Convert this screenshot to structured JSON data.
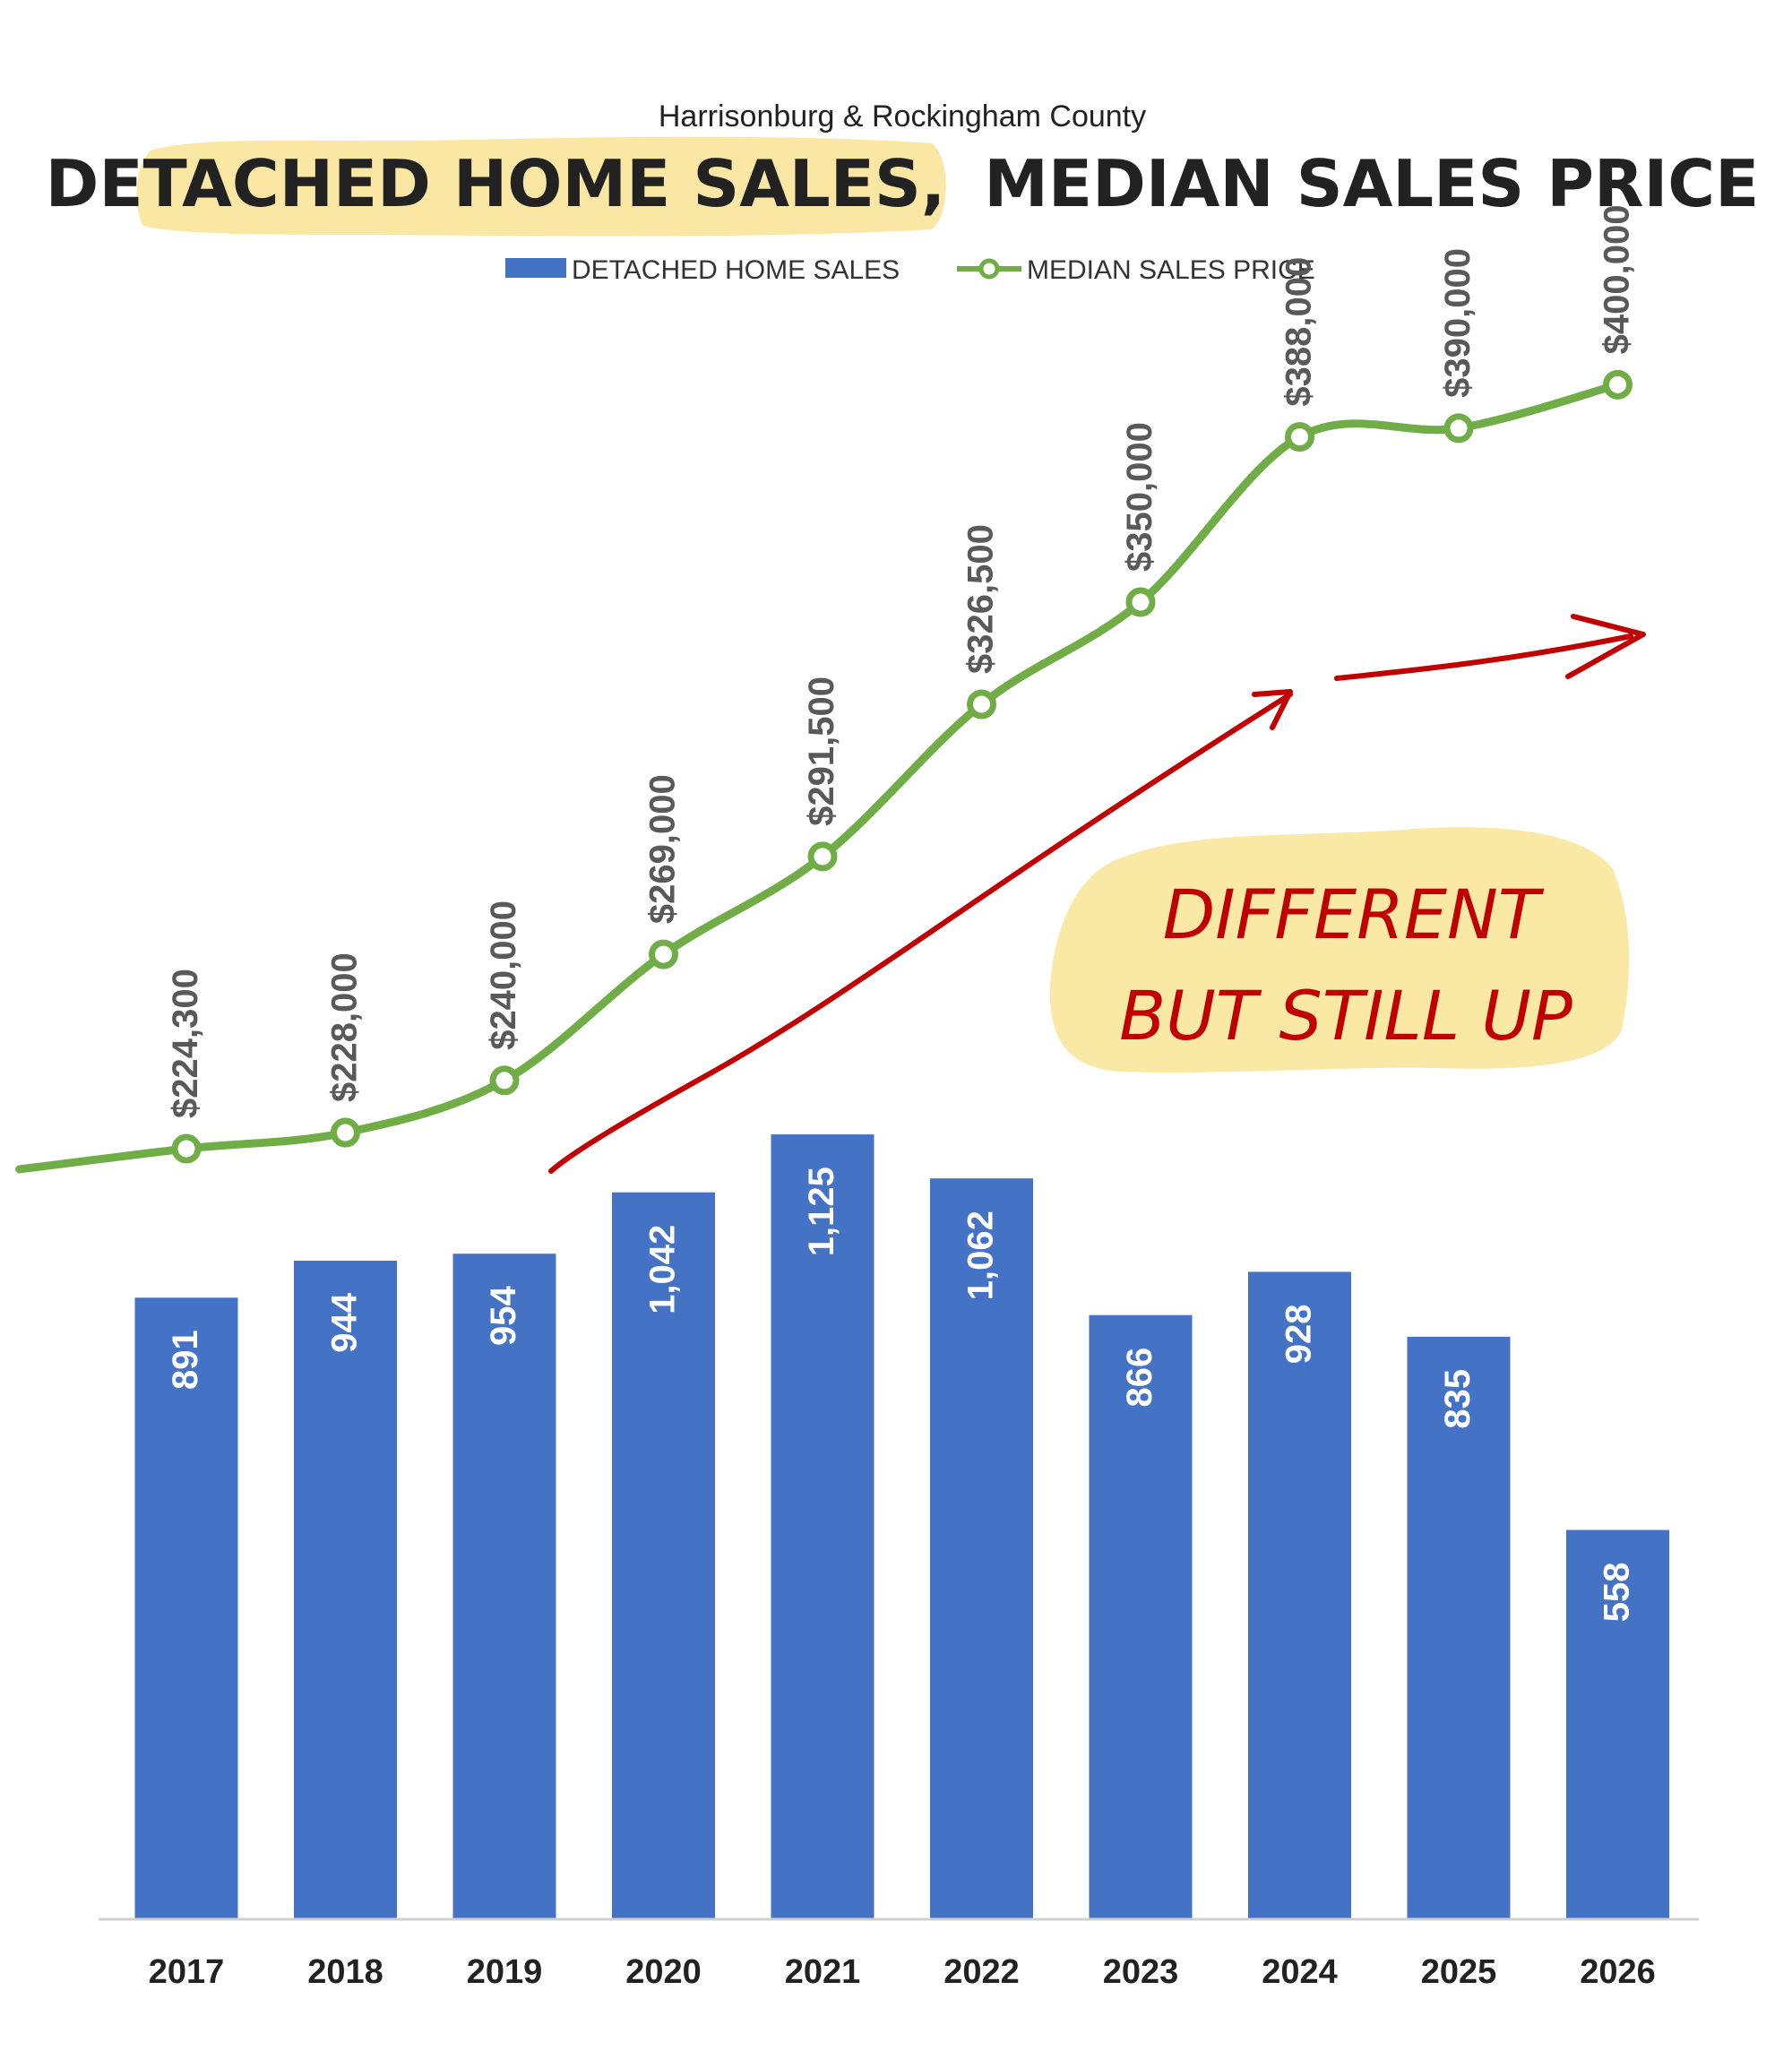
{
  "chart_data": {
    "type": "bar+line",
    "subtitle": "Harrisonburg & Rockingham County",
    "title_part1": "DETACHED HOME SALES,",
    "title_part2": "MEDIAN SALES PRICE",
    "categories": [
      "2017",
      "2018",
      "2019",
      "2020",
      "2021",
      "2022",
      "2023",
      "2024",
      "2025",
      "2026"
    ],
    "series": [
      {
        "name": "DETACHED HOME SALES",
        "type": "bar",
        "values": [
          891,
          944,
          954,
          1042,
          1125,
          1062,
          866,
          928,
          835,
          558
        ],
        "labels": [
          "891",
          "944",
          "954",
          "1,042",
          "1,125",
          "1,062",
          "866",
          "928",
          "835",
          "558"
        ],
        "color": "#4472C4"
      },
      {
        "name": "MEDIAN SALES PRICE",
        "type": "line",
        "values": [
          224300,
          228000,
          240000,
          269000,
          291500,
          326500,
          350000,
          388000,
          390000,
          400000
        ],
        "labels": [
          "$224,300",
          "$228,000",
          "$240,000",
          "$269,000",
          "$291,500",
          "$326,500",
          "$350,000",
          "$388,000",
          "$390,000",
          "$400,000"
        ],
        "color": "#70AD47"
      }
    ],
    "legend_position": "top-center",
    "grid": false,
    "annotation": {
      "line1": "DIFFERENT",
      "line2": "BUT STILL UP",
      "color": "#C00000",
      "highlight": "#FAE7A0"
    }
  }
}
